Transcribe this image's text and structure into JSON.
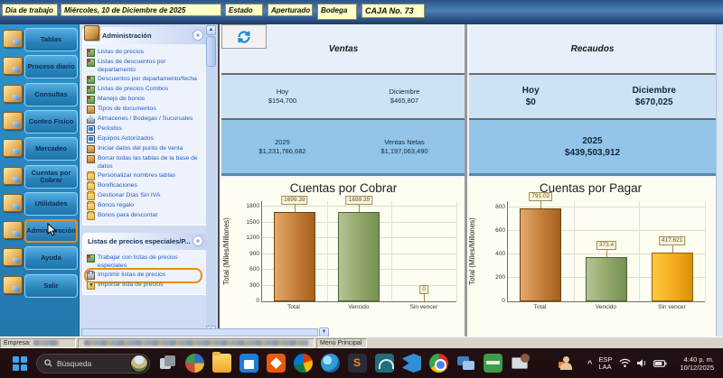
{
  "top_bar": {
    "day_label": "Día de trabajo",
    "day_value": "Miércoles, 10 de Diciembre de 2025",
    "estado_label": "Estado",
    "estado_value": "Aperturado",
    "bodega_label": "Bodega",
    "caja": "CAJA No. 73"
  },
  "sidebar": {
    "items": [
      {
        "label": "Tablas",
        "icon": "tables-icon",
        "active": false
      },
      {
        "label": "Proceso diario",
        "icon": "daily-process-icon",
        "active": false
      },
      {
        "label": "Consultas",
        "icon": "queries-icon",
        "active": false
      },
      {
        "label": "Conteo Físico",
        "icon": "physical-count-icon",
        "active": false
      },
      {
        "label": "Mercadeo",
        "icon": "marketing-icon",
        "active": false
      },
      {
        "label": "Cuentas por Cobrar",
        "icon": "receivables-icon",
        "active": false
      },
      {
        "label": "Utilidades",
        "icon": "utilities-icon",
        "active": false
      },
      {
        "label": "Administración",
        "icon": "administration-icon",
        "active": true
      },
      {
        "label": "Ayuda",
        "icon": "help-icon",
        "active": false
      },
      {
        "label": "Salir",
        "icon": "exit-icon",
        "active": false
      }
    ]
  },
  "menu": {
    "groups": [
      {
        "title": "Administración",
        "items": [
          {
            "label": "Listas de precios",
            "icon": "pricelist-icon"
          },
          {
            "label": "Listas de descuentos por departamento",
            "icon": "pricelist-icon"
          },
          {
            "label": "Descuentos por departamento/fecha",
            "icon": "pricelist-icon"
          },
          {
            "label": "Listas de precios Combos",
            "icon": "pricelist-icon"
          },
          {
            "label": "Manejo de bonos",
            "icon": "pricelist-icon"
          },
          {
            "label": "Tipos de documentos",
            "icon": "box-icon"
          },
          {
            "label": "Almacenes / Bodegas / Sucursales",
            "icon": "house-icon"
          },
          {
            "label": "Periodos",
            "icon": "monitor-icon"
          },
          {
            "label": "Equipos Autorizados",
            "icon": "monitor-icon"
          },
          {
            "label": "Iniciar datos del punto de venta",
            "icon": "box-icon"
          },
          {
            "label": "Borrar todas las tablas de la base de datos",
            "icon": "box-icon"
          },
          {
            "label": "Personalizar nombres tablas",
            "icon": "folder-icon"
          },
          {
            "label": "Bonificaciones",
            "icon": "folder-icon"
          },
          {
            "label": "Gestionar Días Sin IVA",
            "icon": "folder-icon"
          },
          {
            "label": "Bonos regalo",
            "icon": "folder-icon"
          },
          {
            "label": "Bonos para descontar",
            "icon": "folder-icon"
          }
        ]
      },
      {
        "title": "Listas de precios especiales/P...",
        "items": [
          {
            "label": "Trabajar con listas de precios especiales",
            "icon": "pricelist-icon"
          },
          {
            "label": "Imprimir listas de precios",
            "icon": "printer-icon",
            "highlighted": true
          },
          {
            "label": "Importar lista de precios",
            "icon": "import-icon"
          }
        ]
      }
    ]
  },
  "summary": {
    "ventas": {
      "title": "Ventas",
      "hoy_label": "Hoy",
      "hoy_value": "$154,700",
      "dic_label": "Diciembre",
      "dic_value": "$465,807",
      "year_label": "2025",
      "year_value": "$1,231,786,682",
      "netas_label": "Ventas Netas",
      "netas_value": "$1,197,063,490"
    },
    "recaudos": {
      "title": "Recaudos",
      "hoy_label": "Hoy",
      "hoy_value": "$0",
      "dic_label": "Diciembre",
      "dic_value": "$670,025",
      "year_label": "2025",
      "year_value": "$439,503,912"
    }
  },
  "chart_data": [
    {
      "type": "bar",
      "title": "Cuentas por Cobrar",
      "ylabel": "Total (Miles/Millones)",
      "categories": [
        "Total",
        "Vencido",
        "Sin vencer"
      ],
      "values": [
        1699.39,
        1699.39,
        0
      ],
      "labels": [
        "1699.39",
        "1699.39",
        "0"
      ],
      "yticks": [
        0,
        300,
        600,
        900,
        1200,
        1500,
        1800
      ],
      "ylim": [
        0,
        1920
      ],
      "bar_colors": [
        "linear-gradient(90deg,#e3a96b,#c07a35 60%,#a95f1d)",
        "linear-gradient(90deg,#b5c493,#8ea367 60%,#759052)",
        "linear-gradient(90deg,#ffc93e,#f2a71b 60%,#d98f0a)"
      ],
      "bar_borders": [
        "#6e4212",
        "#4c6334",
        "#8f6206"
      ]
    },
    {
      "type": "bar",
      "title": "Cuentas por Pagar",
      "ylabel": "Total (Miles/Millones)",
      "categories": [
        "Total",
        "Vencido",
        "Sin vencer"
      ],
      "values": [
        791.02,
        373.4,
        417.621
      ],
      "labels": [
        "791.02",
        "373.4",
        "417.621"
      ],
      "yticks": [
        0,
        200,
        400,
        600,
        800
      ],
      "ylim": [
        0,
        860
      ],
      "bar_colors": [
        "linear-gradient(90deg,#e3a96b,#c07a35 60%,#a95f1d)",
        "linear-gradient(90deg,#b5c493,#8ea367 60%,#759052)",
        "linear-gradient(90deg,#ffc93e,#f2a71b 60%,#d98f0a)"
      ],
      "bar_borders": [
        "#6e4212",
        "#4c6334",
        "#8f6206"
      ]
    }
  ],
  "status_bar": {
    "empresa_label": "Empresa:",
    "menu_label": "Menú Principal"
  },
  "taskbar": {
    "search_placeholder": "Búsqueda",
    "app_icons": [
      "task-view",
      "browser-sphere",
      "file-explorer",
      "microsoft-store",
      "app-orange",
      "office-hub",
      "edge",
      "sublime-text",
      "system-monitor",
      "vscode",
      "chrome",
      "remote-desktop",
      "payment-green",
      "display-settings"
    ],
    "language_line1": "ESP",
    "language_line2": "LAA",
    "time": "4:40 p. m.",
    "date": "10/12/2025"
  },
  "colors": {
    "highlight_orange": "#ef8a0e",
    "sidebar_blue": "#2f93cc",
    "summary_row_blue": "#92c5e7",
    "pane_background": "#cfdcf3"
  }
}
